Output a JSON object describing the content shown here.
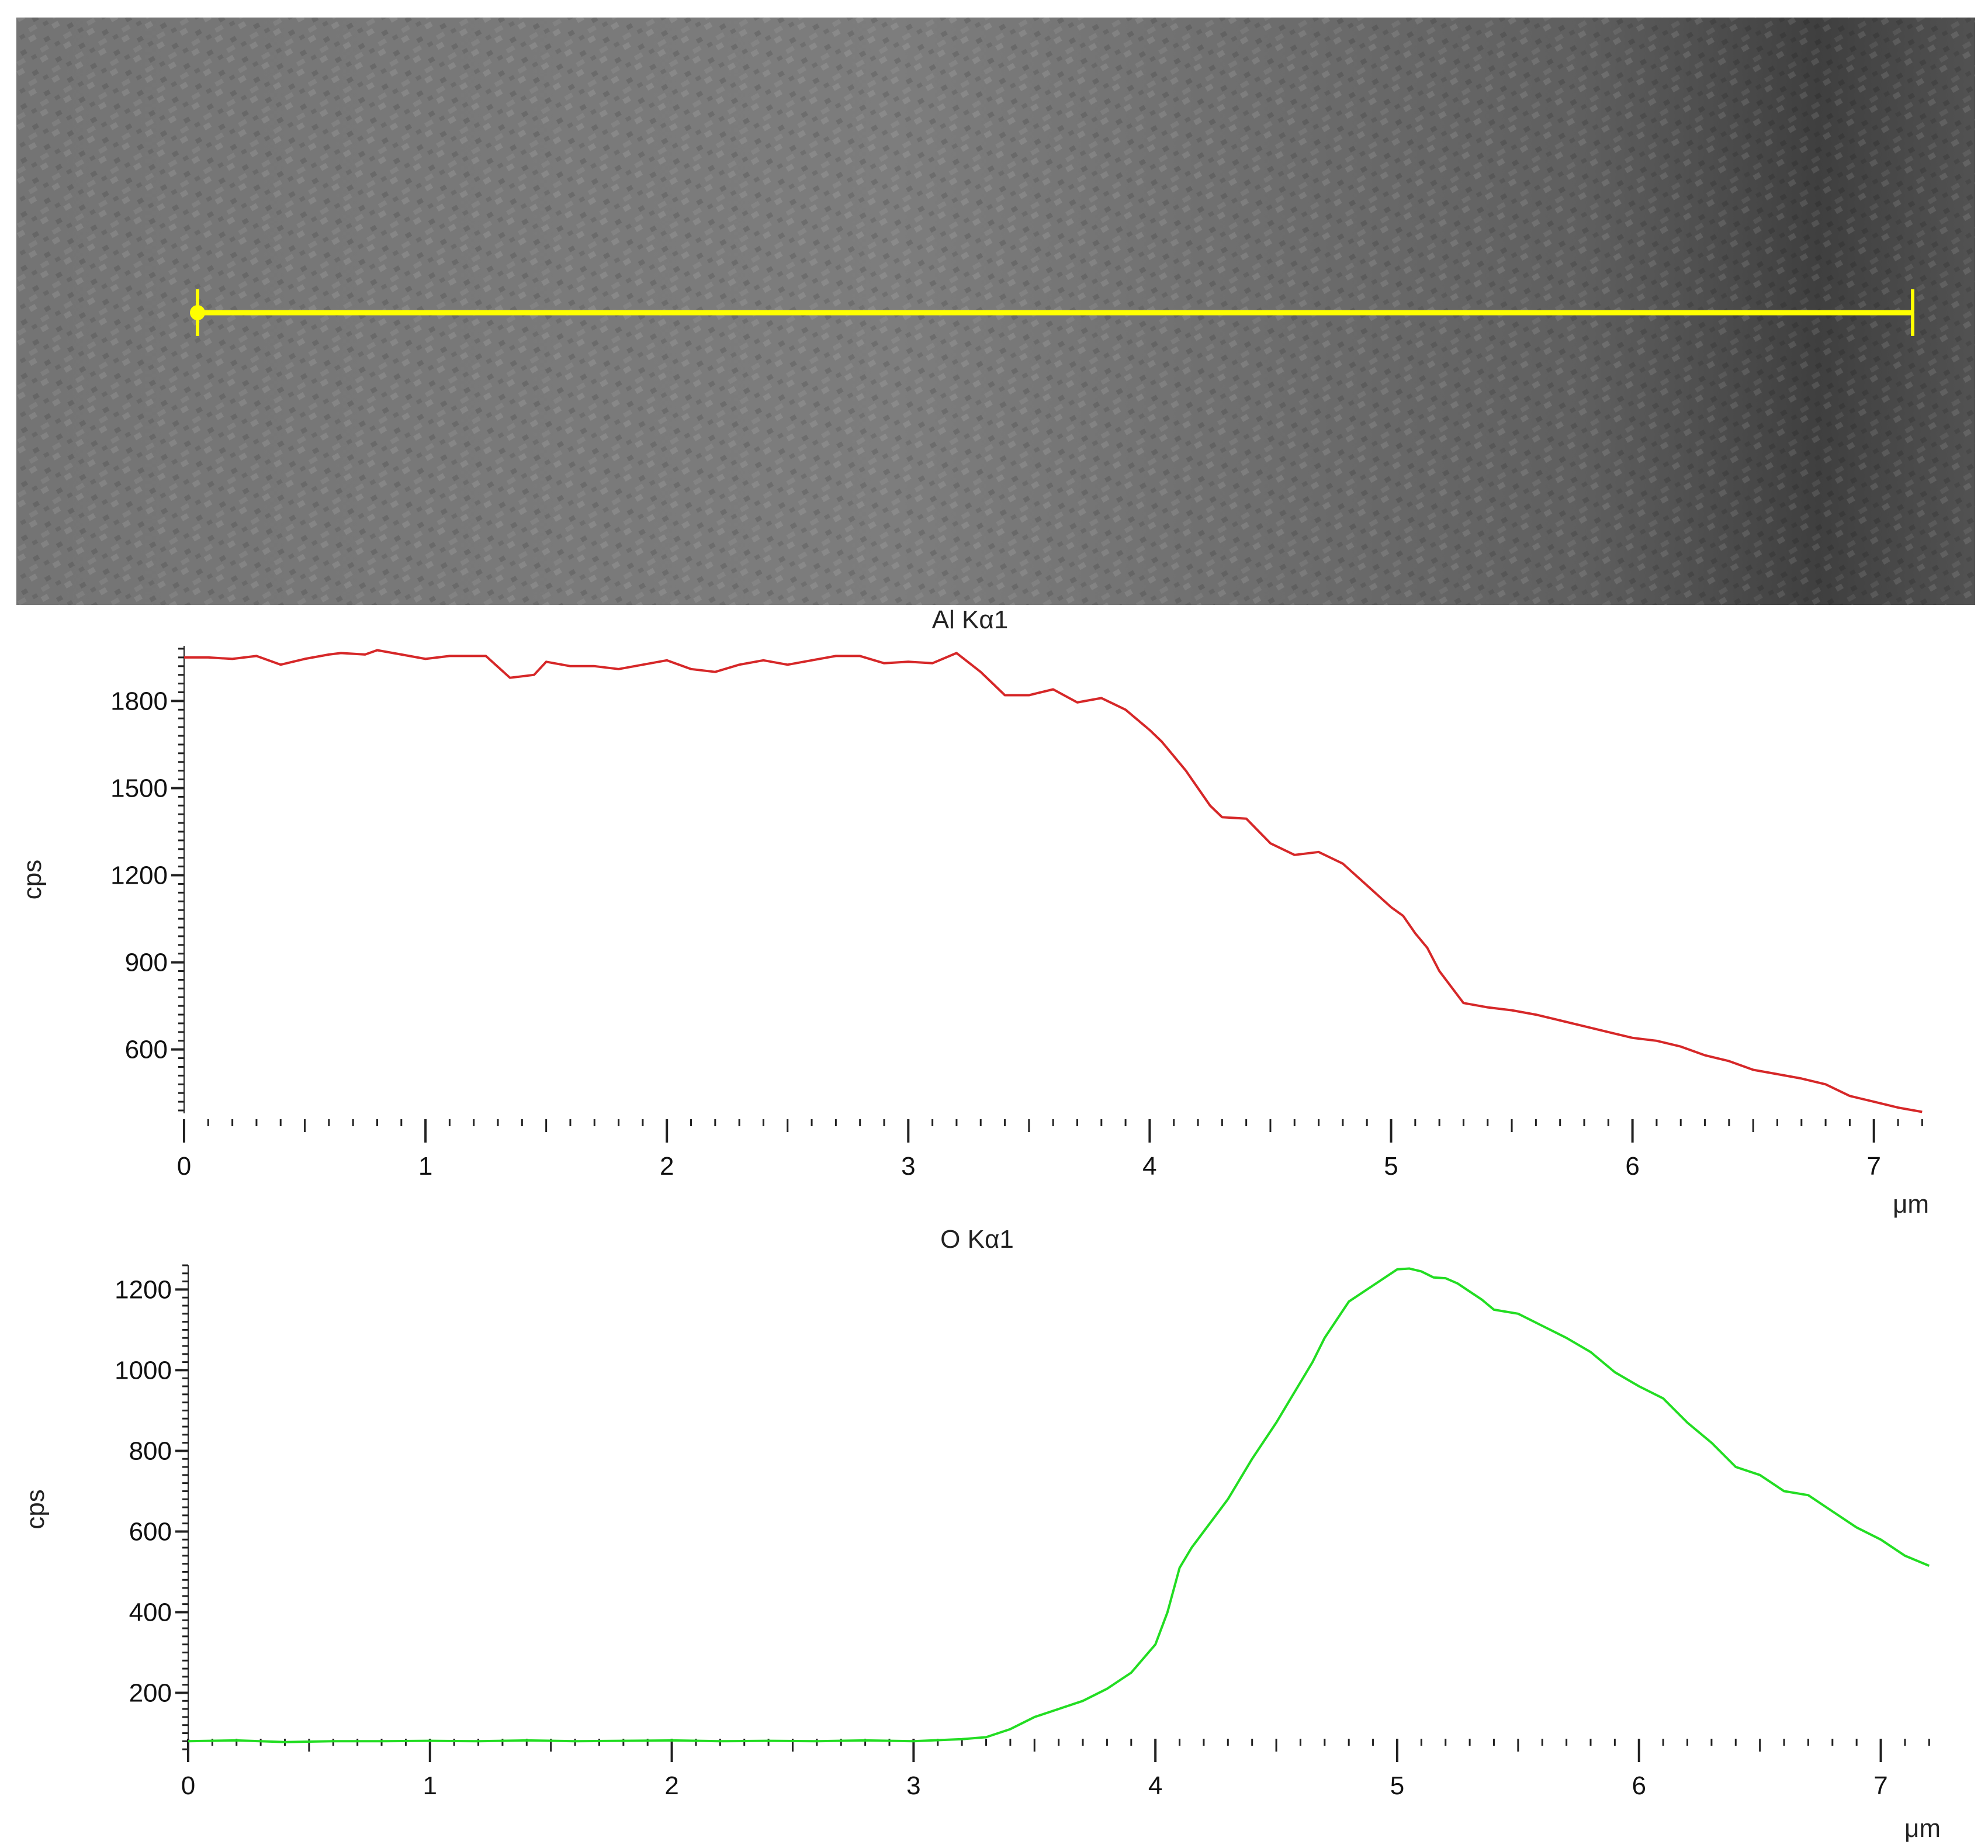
{
  "image": {
    "description_icon": "sem-micrograph",
    "line_color": "#ffff00"
  },
  "chart_data": [
    {
      "type": "line",
      "title": "Al Kα1",
      "xlabel": "μm",
      "ylabel": "cps",
      "xlim": [
        0,
        7.25
      ],
      "ylim": [
        380,
        1990
      ],
      "x_ticks": [
        0,
        1,
        2,
        3,
        4,
        5,
        6,
        7
      ],
      "y_ticks": [
        600,
        900,
        1200,
        1500,
        1800
      ],
      "grid": false,
      "series": [
        {
          "color": "#d62728",
          "x": [
            0,
            0.1,
            0.2,
            0.3,
            0.4,
            0.5,
            0.6,
            0.65,
            0.75,
            0.8,
            0.9,
            1.0,
            1.1,
            1.25,
            1.35,
            1.45,
            1.5,
            1.6,
            1.7,
            1.8,
            1.9,
            2.0,
            2.1,
            2.2,
            2.3,
            2.4,
            2.5,
            2.6,
            2.7,
            2.8,
            2.9,
            3.0,
            3.1,
            3.2,
            3.3,
            3.4,
            3.5,
            3.6,
            3.7,
            3.8,
            3.9,
            4.0,
            4.05,
            4.15,
            4.25,
            4.3,
            4.4,
            4.5,
            4.6,
            4.7,
            4.8,
            4.9,
            5.0,
            5.05,
            5.1,
            5.15,
            5.2,
            5.3,
            5.4,
            5.5,
            5.6,
            5.7,
            5.8,
            5.9,
            6.0,
            6.1,
            6.2,
            6.3,
            6.4,
            6.5,
            6.6,
            6.7,
            6.8,
            6.9,
            7.0,
            7.1,
            7.2
          ],
          "y": [
            1950,
            1950,
            1945,
            1955,
            1925,
            1945,
            1960,
            1965,
            1960,
            1975,
            1960,
            1945,
            1955,
            1955,
            1880,
            1890,
            1935,
            1920,
            1920,
            1910,
            1925,
            1940,
            1910,
            1900,
            1925,
            1940,
            1925,
            1940,
            1955,
            1955,
            1930,
            1935,
            1930,
            1965,
            1900,
            1820,
            1820,
            1840,
            1795,
            1810,
            1770,
            1700,
            1660,
            1560,
            1440,
            1400,
            1395,
            1310,
            1270,
            1280,
            1240,
            1165,
            1090,
            1060,
            1000,
            950,
            870,
            760,
            745,
            735,
            720,
            700,
            680,
            660,
            640,
            630,
            610,
            580,
            560,
            530,
            515,
            500,
            480,
            440,
            420,
            400,
            385
          ]
        }
      ]
    },
    {
      "type": "line",
      "title": "O Kα1",
      "xlabel": "μm",
      "ylabel": "cps",
      "xlim": [
        0,
        7.25
      ],
      "ylim": [
        50,
        1260
      ],
      "x_ticks": [
        0,
        1,
        2,
        3,
        4,
        5,
        6,
        7
      ],
      "y_ticks": [
        200,
        400,
        600,
        800,
        1000,
        1200
      ],
      "grid": false,
      "series": [
        {
          "color": "#22dd22",
          "x": [
            0,
            0.2,
            0.4,
            0.6,
            0.8,
            1.0,
            1.2,
            1.4,
            1.6,
            1.8,
            2.0,
            2.2,
            2.4,
            2.6,
            2.8,
            3.0,
            3.2,
            3.3,
            3.4,
            3.5,
            3.6,
            3.7,
            3.8,
            3.9,
            4.0,
            4.05,
            4.1,
            4.15,
            4.2,
            4.3,
            4.4,
            4.5,
            4.6,
            4.65,
            4.7,
            4.8,
            4.9,
            5.0,
            5.05,
            5.1,
            5.15,
            5.2,
            5.25,
            5.3,
            5.35,
            5.4,
            5.45,
            5.5,
            5.6,
            5.7,
            5.8,
            5.9,
            6.0,
            6.1,
            6.2,
            6.3,
            6.4,
            6.5,
            6.6,
            6.7,
            6.8,
            6.9,
            7.0,
            7.1,
            7.2
          ],
          "y": [
            80,
            82,
            78,
            80,
            80,
            81,
            80,
            82,
            80,
            81,
            82,
            80,
            81,
            80,
            82,
            80,
            85,
            90,
            110,
            140,
            160,
            180,
            210,
            250,
            320,
            400,
            510,
            560,
            600,
            680,
            780,
            870,
            970,
            1020,
            1080,
            1170,
            1210,
            1250,
            1252,
            1245,
            1230,
            1228,
            1215,
            1195,
            1175,
            1150,
            1145,
            1140,
            1110,
            1080,
            1045,
            995,
            960,
            930,
            870,
            820,
            760,
            740,
            700,
            690,
            650,
            610,
            580,
            540,
            515
          ]
        }
      ]
    }
  ]
}
